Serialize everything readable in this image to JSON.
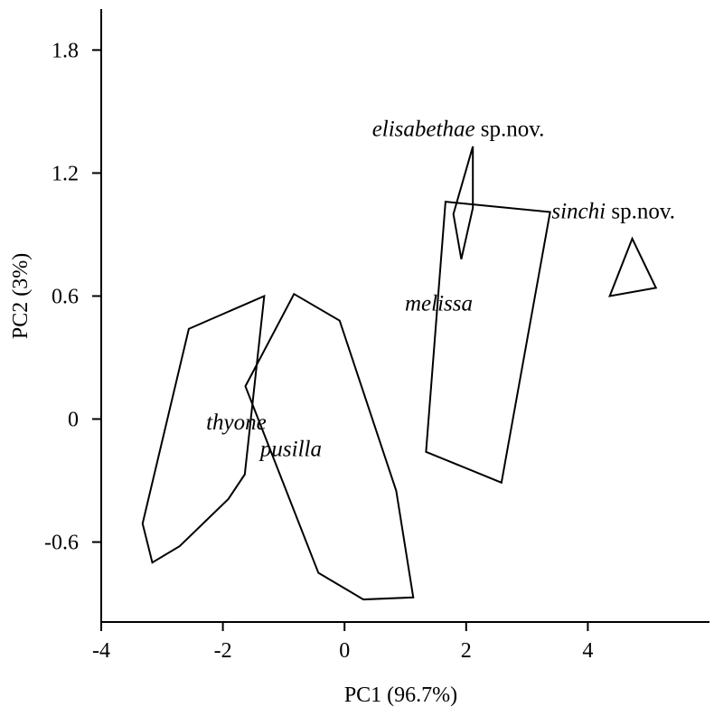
{
  "chart_data": {
    "type": "scatter",
    "title": "",
    "xlabel": "PC1 (96.7%)",
    "ylabel": "PC2 (3%)",
    "xlim": [
      -4.0,
      6.0
    ],
    "ylim": [
      -0.99,
      2.0
    ],
    "x_ticks": [
      -4,
      -2,
      0,
      2,
      4
    ],
    "x_tick_labels": [
      "-4",
      "-2",
      "0",
      "2",
      "4"
    ],
    "y_ticks": [
      -0.6,
      0,
      0.6,
      1.2,
      1.8
    ],
    "y_tick_labels": [
      "-0.6",
      "0",
      "0.6",
      "1.2",
      "1.8"
    ],
    "grid": false,
    "series": [
      {
        "name": "thyone",
        "label_parts": [
          {
            "text": "thyone",
            "italic": true
          }
        ],
        "label_anchor": [
          -1.78,
          -0.05
        ],
        "polygon": [
          [
            -2.56,
            0.44
          ],
          [
            -1.32,
            0.6
          ],
          [
            -1.64,
            -0.27
          ],
          [
            -1.91,
            -0.39
          ],
          [
            -2.71,
            -0.62
          ],
          [
            -3.16,
            -0.7
          ],
          [
            -3.32,
            -0.51
          ],
          [
            -2.56,
            0.44
          ]
        ]
      },
      {
        "name": "pusilla",
        "label_parts": [
          {
            "text": "pusilla",
            "italic": true
          }
        ],
        "label_anchor": [
          -0.88,
          -0.18
        ],
        "polygon": [
          [
            -0.83,
            0.61
          ],
          [
            -0.08,
            0.48
          ],
          [
            0.85,
            -0.35
          ],
          [
            1.13,
            -0.87
          ],
          [
            0.31,
            -0.88
          ],
          [
            -0.43,
            -0.75
          ],
          [
            -1.63,
            0.16
          ],
          [
            -0.83,
            0.61
          ]
        ]
      },
      {
        "name": "melissa",
        "label_parts": [
          {
            "text": "melissa",
            "italic": true
          }
        ],
        "label_anchor": [
          1.55,
          0.53
        ],
        "polygon": [
          [
            1.66,
            1.06
          ],
          [
            3.38,
            1.01
          ],
          [
            2.58,
            -0.31
          ],
          [
            1.34,
            -0.16
          ],
          [
            1.66,
            1.06
          ]
        ]
      },
      {
        "name": "elisabethae sp.nov.",
        "label_parts": [
          {
            "text": "elisabethae",
            "italic": true
          },
          {
            "text": " sp.nov.",
            "italic": false
          }
        ],
        "label_anchor": [
          1.87,
          1.38
        ],
        "polygon": [
          [
            2.11,
            1.33
          ],
          [
            2.11,
            1.03
          ],
          [
            1.92,
            0.78
          ],
          [
            1.79,
            1.0
          ],
          [
            2.11,
            1.33
          ]
        ]
      },
      {
        "name": "sinchi sp.nov.",
        "label_parts": [
          {
            "text": "sinchi",
            "italic": true
          },
          {
            "text": " sp.nov.",
            "italic": false
          }
        ],
        "label_anchor": [
          4.42,
          0.98
        ],
        "polygon": [
          [
            4.73,
            0.88
          ],
          [
            5.12,
            0.64
          ],
          [
            4.36,
            0.6
          ],
          [
            4.73,
            0.88
          ]
        ]
      }
    ]
  }
}
